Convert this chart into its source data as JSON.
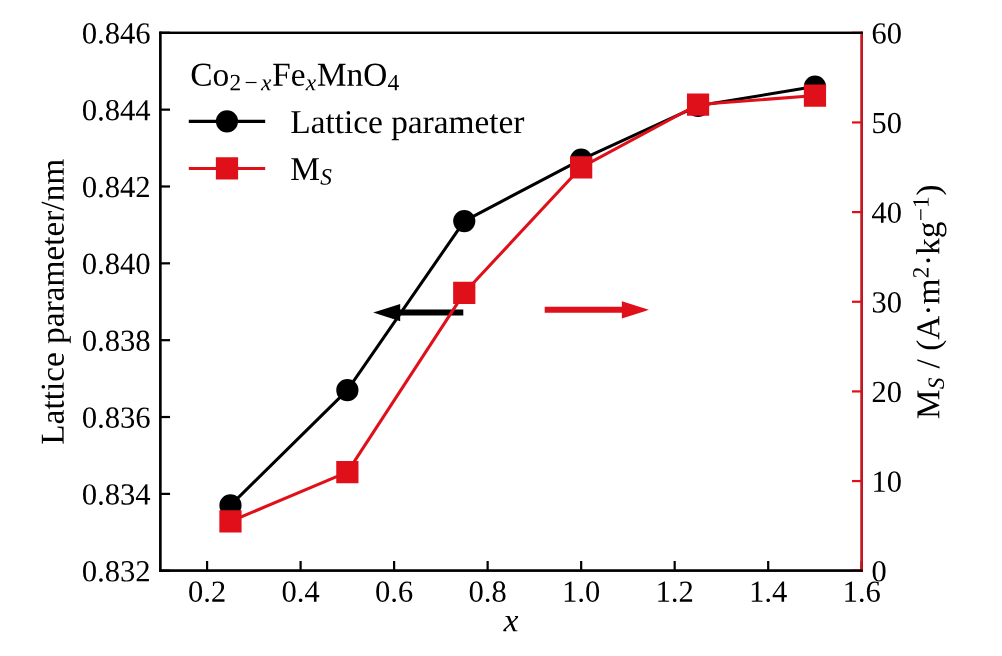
{
  "chart_data": {
    "type": "line",
    "xlabel": "x",
    "ylabel": "Lattice parameter/nm",
    "y2label": "M$_{S}$ / (A·m$^{2}$·kg$^{−1}$)",
    "legend_title": "Co$_{2−x}$Fe$_{x}$MnO$_{4}$",
    "x": [
      0.25,
      0.5,
      0.75,
      1.0,
      1.25,
      1.5
    ],
    "series": [
      {
        "name": "Lattice parameter",
        "color": "#000000",
        "marker": "circle",
        "values": [
          0.8337,
          0.8367,
          0.8411,
          0.8427,
          0.8441,
          0.8446
        ]
      },
      {
        "name": "M$_{S}$",
        "color": "#e0101a",
        "marker": "square",
        "axis": "y2",
        "values": [
          5.5,
          11,
          31,
          45,
          52,
          53
        ]
      }
    ],
    "xlim": [
      0.1,
      1.6
    ],
    "xticks": [
      0.2,
      0.4,
      0.6,
      0.8,
      {
        "value": 1.0,
        "label": "1.0"
      },
      1.2,
      1.4,
      1.6
    ],
    "ylim": [
      0.832,
      0.846
    ],
    "yticks": [
      0.832,
      0.834,
      0.836,
      0.838,
      {
        "value": 0.84,
        "label": "0.840"
      },
      0.842,
      0.844,
      0.846
    ],
    "y2lim": [
      0,
      60
    ],
    "y2ticks": [
      0,
      10,
      20,
      30,
      40,
      50,
      60
    ],
    "grid": false,
    "legend": "top left",
    "line_style": "solid"
  }
}
